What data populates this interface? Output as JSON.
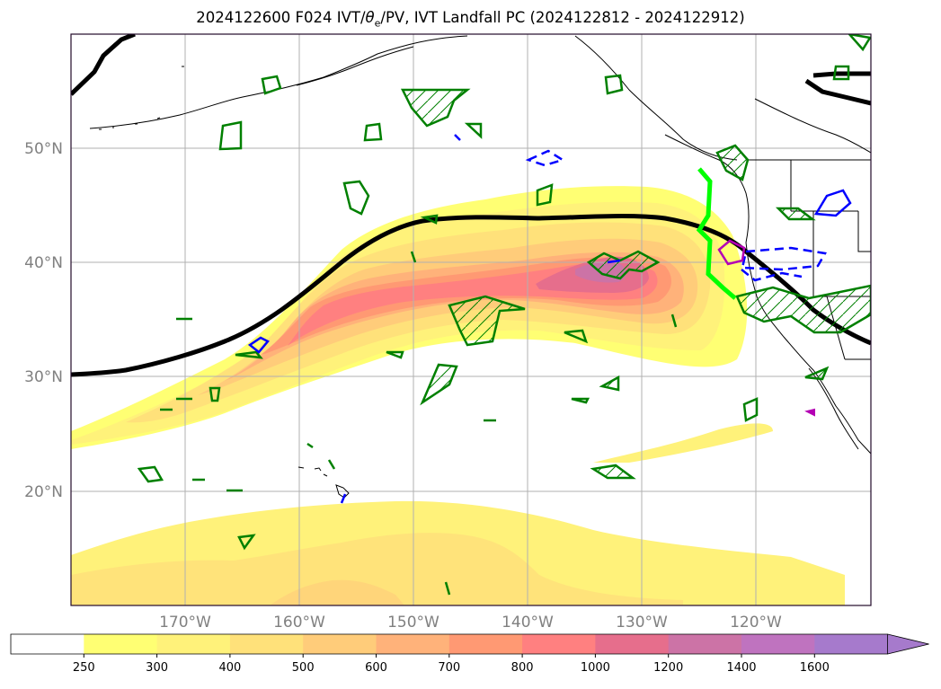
{
  "title": {
    "prefix": "2024122600 F024 IVT/",
    "theta_symbol": "θ",
    "theta_sub": "e",
    "suffix": "/PV, IVT Landfall PC (2024122812 - 2024122912)"
  },
  "map": {
    "lat_labels": [
      "50°N",
      "40°N",
      "30°N",
      "20°N"
    ],
    "lat_values": [
      50,
      40,
      30,
      20
    ],
    "lon_labels": [
      "170°W",
      "160°W",
      "150°W",
      "140°W",
      "130°W",
      "120°W"
    ],
    "lon_values": [
      -170,
      -160,
      -150,
      -140,
      -130,
      -120
    ],
    "extent": {
      "lon_min": -180,
      "lon_max": -110,
      "lat_min": 10,
      "lat_max": 60
    }
  },
  "colorbar": {
    "levels": [
      "250",
      "300",
      "400",
      "500",
      "600",
      "700",
      "800",
      "1000",
      "1200",
      "1400",
      "1600"
    ],
    "colors": [
      "#ffffff",
      "#ffff73",
      "#fff27a",
      "#ffe17a",
      "#ffcc7a",
      "#ffb27a",
      "#ff9973",
      "#ff8080",
      "#e66e8c",
      "#cc73a6",
      "#bf73bf",
      "#a67acc"
    ],
    "extend": "max"
  },
  "colors": {
    "coast": "#000000",
    "theta_e": "#000000",
    "pv": "#008000",
    "landfall": "#00ff00",
    "negative": "#0000ff",
    "magenta": "#b400b4",
    "grid": "#b0b0b0"
  }
}
